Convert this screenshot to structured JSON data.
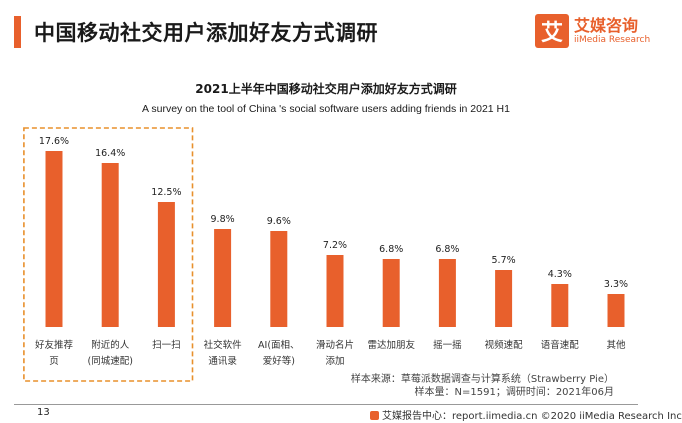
{
  "header": {
    "title": "中国移动社交用户添加好友方式调研",
    "logo_mark": "艾",
    "logo_cn": "艾媒咨询",
    "logo_en": "iiMedia Research",
    "accent_color": "#e8602c"
  },
  "chart_data": {
    "type": "bar",
    "title": "2021上半年中国移动社交用户添加好友方式调研",
    "subtitle": "A survey on the tool of China 's social software users adding friends in 2021 H1",
    "categories": [
      [
        "好友推荐",
        "页"
      ],
      [
        "附近的人",
        "(同城速配)"
      ],
      [
        "扫一扫"
      ],
      [
        "社交软件",
        "通讯录"
      ],
      [
        "AI(面相、",
        "爱好等)"
      ],
      [
        "滑动名片",
        "添加"
      ],
      [
        "雷达加朋友"
      ],
      [
        "摇一摇"
      ],
      [
        "视频速配"
      ],
      [
        "语音速配"
      ],
      [
        "其他"
      ]
    ],
    "values": [
      17.6,
      16.4,
      12.5,
      9.8,
      9.6,
      7.2,
      6.8,
      6.8,
      5.7,
      4.3,
      3.3
    ],
    "value_labels": [
      "17.6%",
      "16.4%",
      "12.5%",
      "9.8%",
      "9.6%",
      "7.2%",
      "6.8%",
      "6.8%",
      "5.7%",
      "4.3%",
      "3.3%"
    ],
    "highlighted_count": 3,
    "bar_color": "#e8602c",
    "highlight_border_color": "#e8902c",
    "ylim": [
      0,
      20
    ],
    "grid": false
  },
  "source": {
    "line1": "样本来源：草莓派数据调查与计算系统（Strawberry Pie）",
    "line2": "样本量：N=1591；调研时间：2021年06月"
  },
  "footer": {
    "page_number": "13",
    "brand_text": "艾媒报告中心：report.iimedia.cn ©2020 iiMedia Research Inc"
  }
}
